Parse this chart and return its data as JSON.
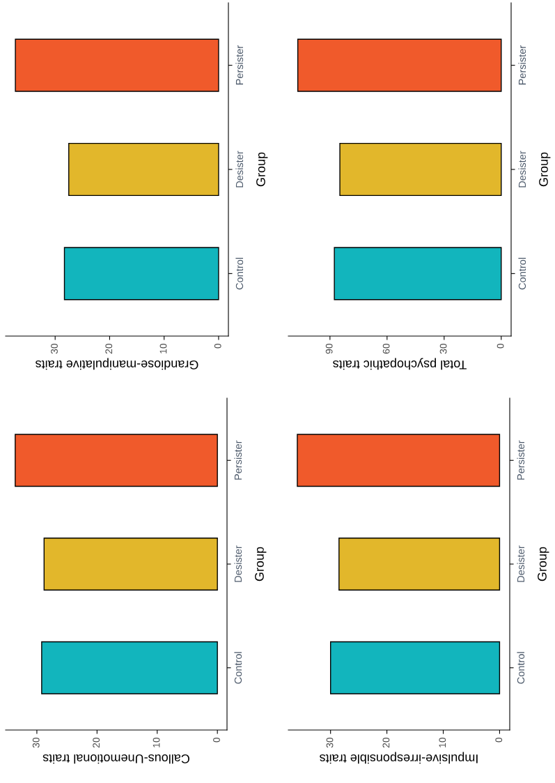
{
  "chart_data": [
    {
      "type": "bar",
      "orientation": "horizontal",
      "categories": [
        "Persister",
        "Desister",
        "Control"
      ],
      "values": [
        37.3,
        27.5,
        28.3
      ],
      "colors": [
        "#f05a2b",
        "#e2b72b",
        "#12b5bd"
      ],
      "xlabel": "Grandiose-manipulative traits",
      "ylabel": "Group",
      "xlim": [
        39.1,
        -1.8
      ],
      "xticks": [
        0,
        10,
        20,
        30
      ]
    },
    {
      "type": "bar",
      "orientation": "horizontal",
      "categories": [
        "Persister",
        "Desister",
        "Control"
      ],
      "values": [
        106.9,
        84.8,
        87.7
      ],
      "colors": [
        "#f05a2b",
        "#e2b72b",
        "#12b5bd"
      ],
      "xlabel": "Total psychopathic traits",
      "ylabel": "Group",
      "xlim": [
        111.9,
        -5.2
      ],
      "xticks": [
        0,
        30,
        60,
        90
      ]
    },
    {
      "type": "bar",
      "orientation": "horizontal",
      "categories": [
        "Persister",
        "Desister",
        "Control"
      ],
      "values": [
        33.6,
        28.8,
        29.2
      ],
      "colors": [
        "#f05a2b",
        "#e2b72b",
        "#12b5bd"
      ],
      "xlabel": "Callous-Unemotional traits",
      "ylabel": "Group",
      "xlim": [
        35.2,
        -1.6
      ],
      "xticks": [
        0,
        10,
        20,
        30
      ]
    },
    {
      "type": "bar",
      "orientation": "horizontal",
      "categories": [
        "Persister",
        "Desister",
        "Control"
      ],
      "values": [
        35.9,
        28.5,
        30.0
      ],
      "colors": [
        "#f05a2b",
        "#e2b72b",
        "#12b5bd"
      ],
      "xlabel": "Impulsive-irresponsible traits",
      "ylabel": "Group",
      "xlim": [
        37.5,
        -1.8
      ],
      "xticks": [
        0,
        10,
        20,
        30
      ]
    }
  ]
}
